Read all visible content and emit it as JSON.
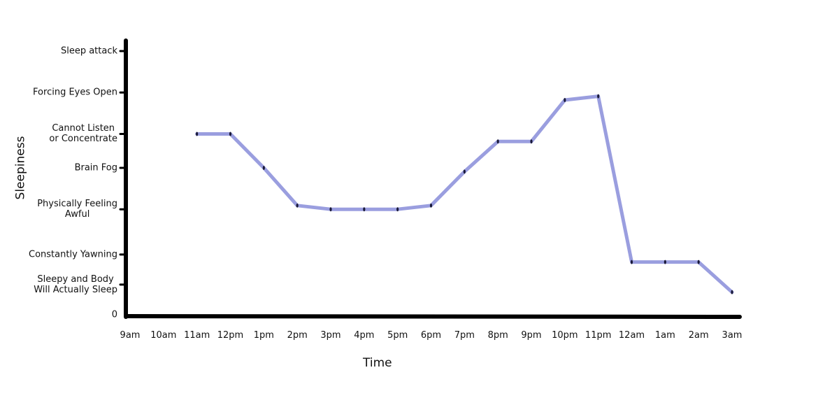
{
  "chart_data": {
    "type": "line",
    "x_label": "Time",
    "y_label": "Sleepiness",
    "categories": [
      "9am",
      "10am",
      "11am",
      "12pm",
      "1pm",
      "2pm",
      "3pm",
      "4pm",
      "5pm",
      "6pm",
      "7pm",
      "8pm",
      "9pm",
      "10pm",
      "11pm",
      "12am",
      "1am",
      "2am",
      "3am"
    ],
    "series": [
      {
        "color": "#8f94dc",
        "values": [
          null,
          null,
          4.8,
          4.8,
          3.9,
          2.9,
          2.8,
          2.8,
          2.8,
          2.9,
          3.8,
          4.6,
          4.6,
          5.7,
          5.8,
          1.4,
          1.4,
          1.4,
          0.6
        ]
      }
    ],
    "ylim": [
      0,
      7
    ],
    "yticks": [
      0,
      {
        "value": 0.8,
        "label": "Sleepy and Body\nWill Actually Sleep"
      },
      {
        "value": 1.6,
        "label": "Constantly Yawning"
      },
      {
        "value": 2.8,
        "label": "Physically Feeling\nAwful"
      },
      {
        "value": 3.9,
        "label": "Brain Fog"
      },
      {
        "value": 4.8,
        "label": "Cannot Listen\nor Concentrate"
      },
      {
        "value": 5.9,
        "label": "Forcing Eyes Open"
      },
      {
        "value": 7,
        "label": "Sleep attack"
      }
    ]
  }
}
